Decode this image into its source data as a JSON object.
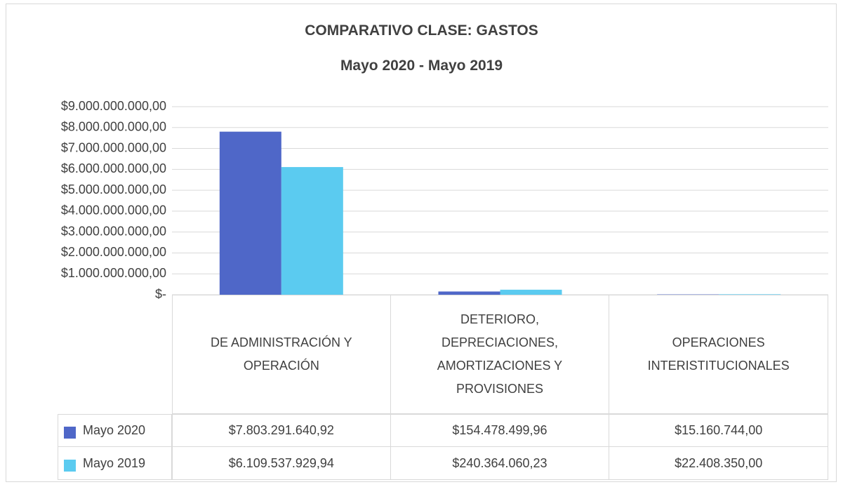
{
  "chart_data": {
    "type": "bar",
    "title": "COMPARATIVO CLASE: GASTOS",
    "subtitle": "Mayo 2020 - Mayo 2019",
    "categories": [
      "DE ADMINISTRACIÓN Y OPERACIÓN",
      "DETERIORO, DEPRECIACIONES, AMORTIZACIONES Y PROVISIONES",
      "OPERACIONES INTERISTITUCIONALES"
    ],
    "series": [
      {
        "name": "Mayo 2020",
        "color": "#4f67c8",
        "values": [
          7803291640.92,
          154478499.96,
          15160744.0
        ],
        "value_labels": [
          "$7.803.291.640,92",
          "$154.478.499,96",
          "$15.160.744,00"
        ]
      },
      {
        "name": "Mayo 2019",
        "color": "#5bcbf0",
        "values": [
          6109537929.94,
          240364060.23,
          22408350.0
        ],
        "value_labels": [
          "$6.109.537.929,94",
          "$240.364.060,23",
          "$22.408.350,00"
        ]
      }
    ],
    "ylim": [
      0,
      9000000000
    ],
    "yticks": [
      {
        "value": 0,
        "label": "$-"
      },
      {
        "value": 1000000000,
        "label": "$1.000.000.000,00"
      },
      {
        "value": 2000000000,
        "label": "$2.000.000.000,00"
      },
      {
        "value": 3000000000,
        "label": "$3.000.000.000,00"
      },
      {
        "value": 4000000000,
        "label": "$4.000.000.000,00"
      },
      {
        "value": 5000000000,
        "label": "$5.000.000.000,00"
      },
      {
        "value": 6000000000,
        "label": "$6.000.000.000,00"
      },
      {
        "value": 7000000000,
        "label": "$7.000.000.000,00"
      },
      {
        "value": 8000000000,
        "label": "$8.000.000.000,00"
      },
      {
        "value": 9000000000,
        "label": "$9.000.000.000,00"
      }
    ],
    "grid": true,
    "data_table": true
  }
}
